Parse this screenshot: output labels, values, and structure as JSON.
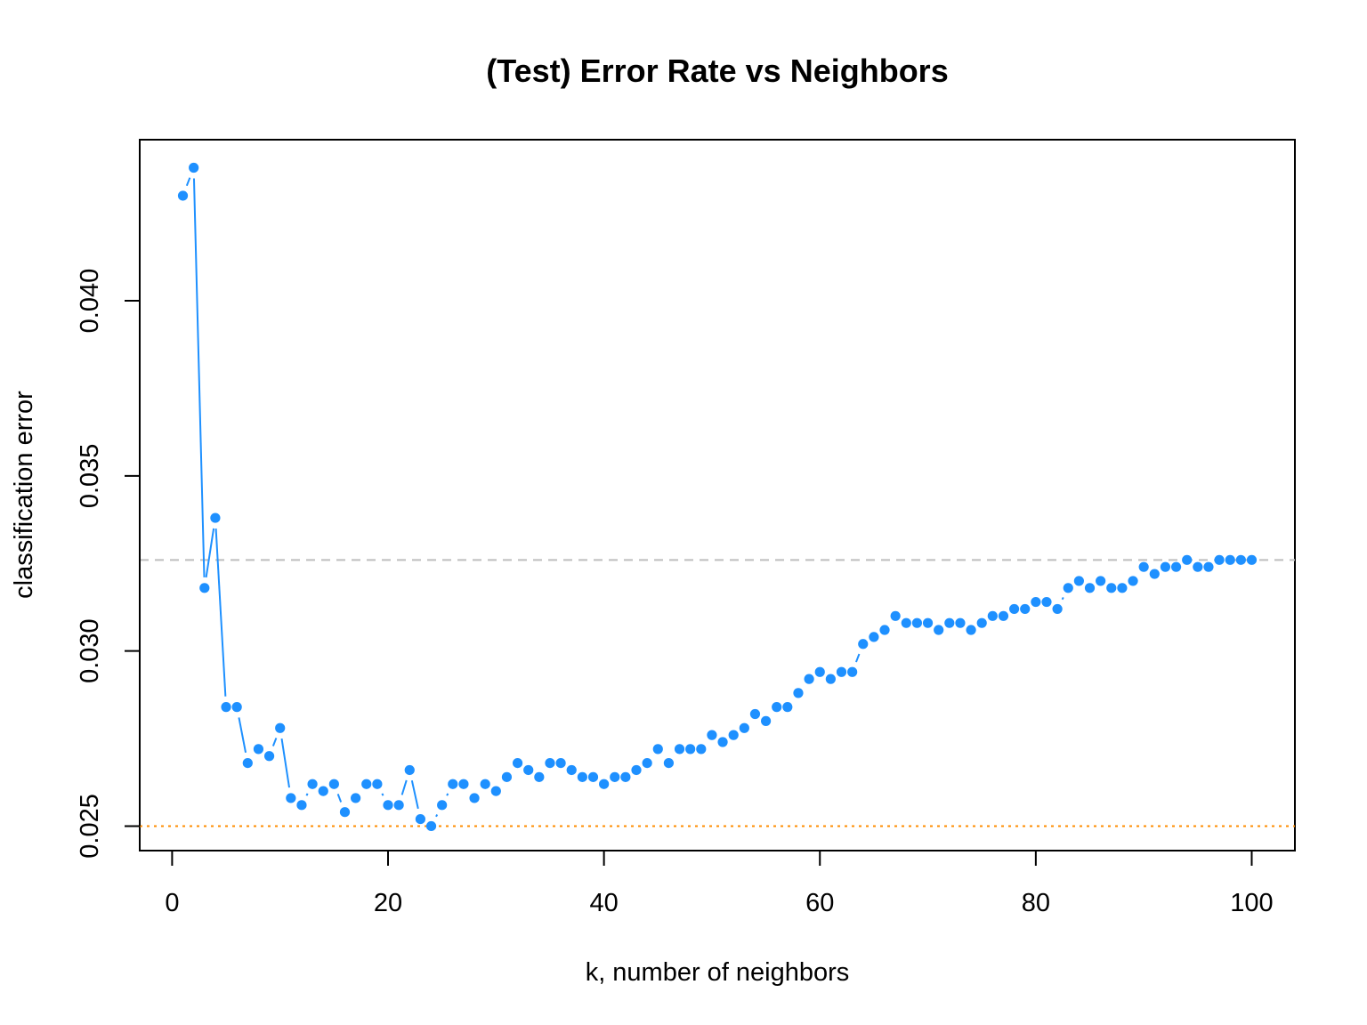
{
  "chart_data": {
    "type": "scatter",
    "title": "(Test) Error Rate vs Neighbors",
    "xlabel": "k, number of neighbors",
    "ylabel": "classification error",
    "xlim": [
      -3,
      104
    ],
    "ylim": [
      0.0243,
      0.0446
    ],
    "xticks": [
      0,
      20,
      40,
      60,
      80,
      100
    ],
    "xtick_labels": [
      "0",
      "20",
      "40",
      "60",
      "80",
      "100"
    ],
    "yticks": [
      0.025,
      0.03,
      0.035,
      0.04
    ],
    "ytick_labels": [
      "0.025",
      "0.030",
      "0.035",
      "0.040"
    ],
    "grid": false,
    "series": [
      {
        "type": "line+points",
        "color": "#1E90FF",
        "x": [
          1,
          2,
          3,
          4,
          5,
          6,
          7,
          8,
          9,
          10,
          11,
          12,
          13,
          14,
          15,
          16,
          17,
          18,
          19,
          20,
          21,
          22,
          23,
          24,
          25,
          26,
          27,
          28,
          29,
          30,
          31,
          32,
          33,
          34,
          35,
          36,
          37,
          38,
          39,
          40,
          41,
          42,
          43,
          44,
          45,
          46,
          47,
          48,
          49,
          50,
          51,
          52,
          53,
          54,
          55,
          56,
          57,
          58,
          59,
          60,
          61,
          62,
          63,
          64,
          65,
          66,
          67,
          68,
          69,
          70,
          71,
          72,
          73,
          74,
          75,
          76,
          77,
          78,
          79,
          80,
          81,
          82,
          83,
          84,
          85,
          86,
          87,
          88,
          89,
          90,
          91,
          92,
          93,
          94,
          95,
          96,
          97,
          98,
          99,
          100
        ],
        "values": [
          0.043,
          0.0438,
          0.0318,
          0.0338,
          0.0284,
          0.0284,
          0.0268,
          0.0272,
          0.027,
          0.0278,
          0.0258,
          0.0256,
          0.0262,
          0.026,
          0.0262,
          0.0254,
          0.0258,
          0.0262,
          0.0262,
          0.0256,
          0.0256,
          0.0266,
          0.0252,
          0.025,
          0.0256,
          0.0262,
          0.0262,
          0.0258,
          0.0262,
          0.026,
          0.0264,
          0.0268,
          0.0266,
          0.0264,
          0.0268,
          0.0268,
          0.0266,
          0.0264,
          0.0264,
          0.0262,
          0.0264,
          0.0264,
          0.0266,
          0.0268,
          0.0272,
          0.0268,
          0.0272,
          0.0272,
          0.0272,
          0.0276,
          0.0274,
          0.0276,
          0.0278,
          0.0282,
          0.028,
          0.0284,
          0.0284,
          0.0288,
          0.0292,
          0.0294,
          0.0292,
          0.0294,
          0.0294,
          0.0302,
          0.0304,
          0.0306,
          0.031,
          0.0308,
          0.0308,
          0.0308,
          0.0306,
          0.0308,
          0.0308,
          0.0306,
          0.0308,
          0.031,
          0.031,
          0.0312,
          0.0312,
          0.0314,
          0.0314,
          0.0312,
          0.0318,
          0.032,
          0.0318,
          0.032,
          0.0318,
          0.0318,
          0.032,
          0.0324,
          0.0322,
          0.0324,
          0.0324,
          0.0326,
          0.0324,
          0.0324,
          0.0326,
          0.0326,
          0.0326,
          0.0326
        ]
      }
    ],
    "reference_lines": [
      {
        "y": 0.0326,
        "color": "#BEBEBE",
        "style": "dashed"
      },
      {
        "y": 0.025,
        "color": "#FF8C00",
        "style": "dotted"
      }
    ]
  }
}
